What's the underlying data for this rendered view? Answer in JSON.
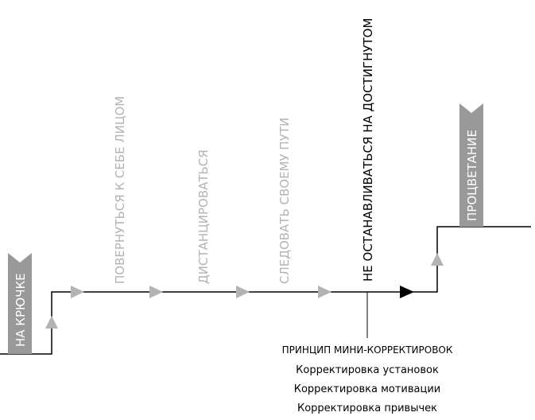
{
  "start_banner": "НА КРЮЧКЕ",
  "steps": [
    "ПОВЕРНУТЬСЯ К СЕБЕ ЛИЦОМ",
    "ДИСТАНЦИРОВАТЬСЯ",
    "СЛЕДОВАТЬ СВОЕМУ ПУТИ",
    "НЕ ОСТАНАВЛИВАТЬСЯ НА ДОСТИГНУТОМ"
  ],
  "end_banner": "ПРОЦВЕТАНИЕ",
  "principle": {
    "title": "ПРИНЦИП МИНИ-КОРРЕКТИРОВОК",
    "items": [
      "Корректировка установок",
      "Корректировка мотивации",
      "Корректировка привычек"
    ]
  }
}
